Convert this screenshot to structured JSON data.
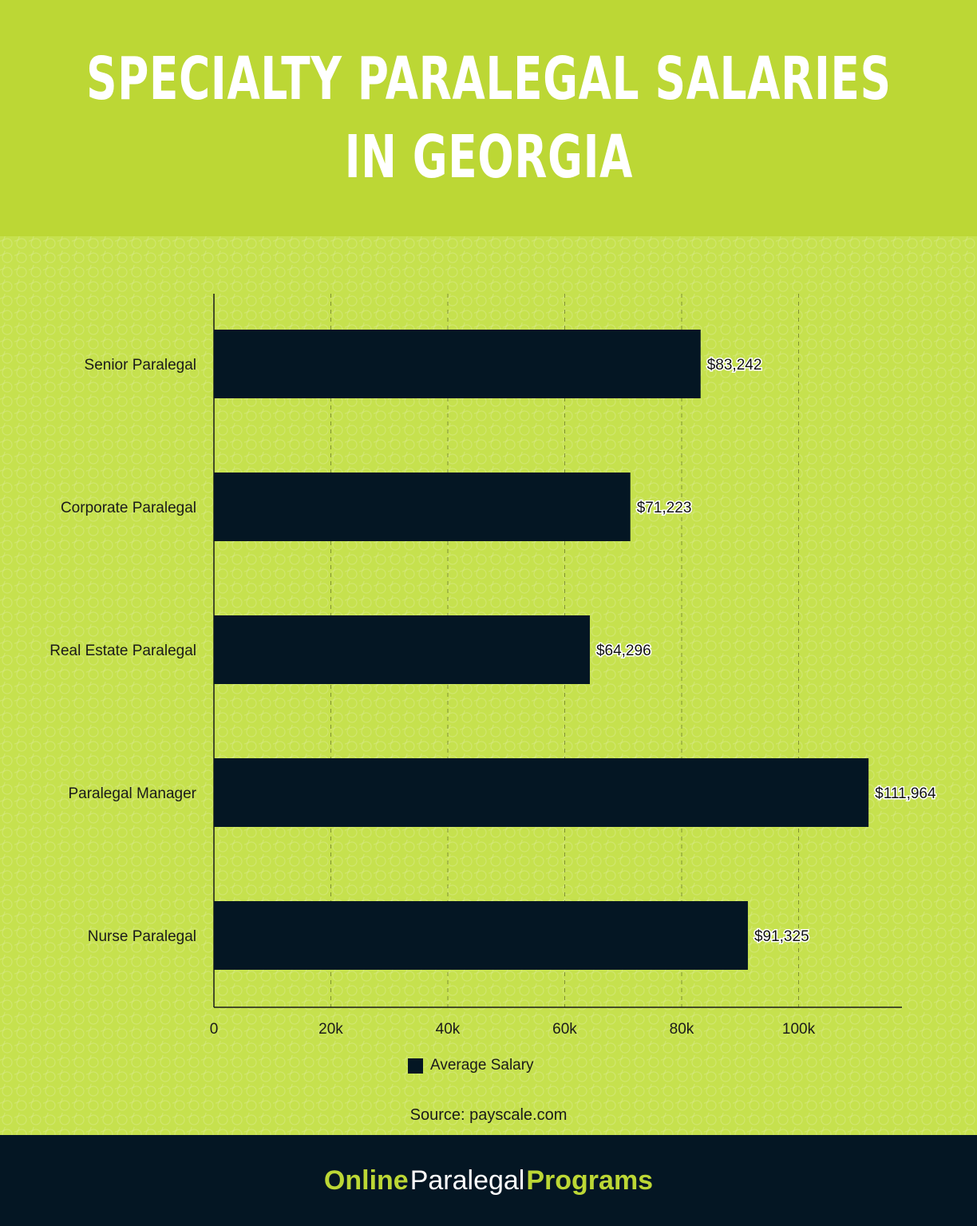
{
  "header": {
    "title_line1": "SPECIALTY PARALEGAL SALARIES",
    "title_line2": "IN GEORGIA"
  },
  "chart_data": {
    "type": "bar",
    "orientation": "horizontal",
    "categories": [
      "Senior Paralegal",
      "Corporate Paralegal",
      "Real Estate Paralegal",
      "Paralegal Manager",
      "Nurse Paralegal"
    ],
    "series": [
      {
        "name": "Average Salary",
        "values": [
          83242,
          71223,
          64296,
          111964,
          91325
        ],
        "labels": [
          "$83,242",
          "$71,223",
          "$64,296",
          "$111,964",
          "$91,325"
        ]
      }
    ],
    "xlim": [
      0,
      117500
    ],
    "xticks": [
      0,
      20000,
      40000,
      60000,
      80000,
      100000
    ],
    "xtick_labels": [
      "0",
      "20k",
      "40k",
      "60k",
      "80k",
      "100k"
    ],
    "grid": "vertical dashed",
    "legend": "bottom-center",
    "bar_color": "#041623"
  },
  "legend": {
    "label": "Average Salary"
  },
  "source": "Source: payscale.com",
  "footer": {
    "brand_part1": "Online",
    "brand_part2": "Paralegal",
    "brand_part3": "Programs"
  },
  "colors": {
    "accent": "#bcd735",
    "dark": "#041623"
  }
}
